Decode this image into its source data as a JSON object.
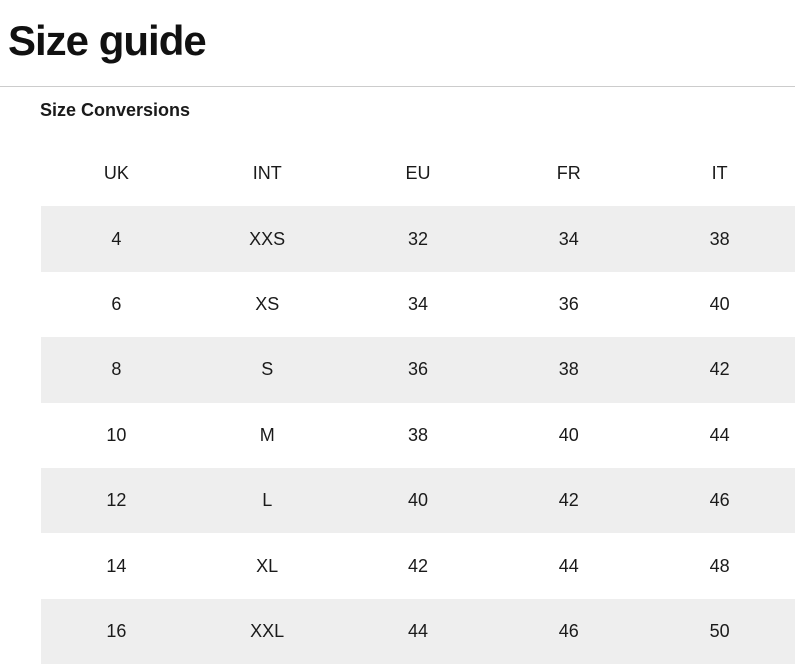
{
  "page": {
    "title": "Size guide",
    "section_title": "Size Conversions"
  },
  "size_table": {
    "columns": [
      "UK",
      "INT",
      "EU",
      "FR",
      "IT"
    ],
    "rows": [
      [
        "4",
        "XXS",
        "32",
        "34",
        "38"
      ],
      [
        "6",
        "XS",
        "34",
        "36",
        "40"
      ],
      [
        "8",
        "S",
        "36",
        "38",
        "42"
      ],
      [
        "10",
        "M",
        "38",
        "40",
        "44"
      ],
      [
        "12",
        "L",
        "40",
        "42",
        "46"
      ],
      [
        "14",
        "XL",
        "42",
        "44",
        "48"
      ],
      [
        "16",
        "XXL",
        "44",
        "46",
        "50"
      ]
    ]
  },
  "colors": {
    "row_alt_bg": "#eeeeee",
    "text": "#1a1a1a",
    "divider": "#cccccc"
  }
}
